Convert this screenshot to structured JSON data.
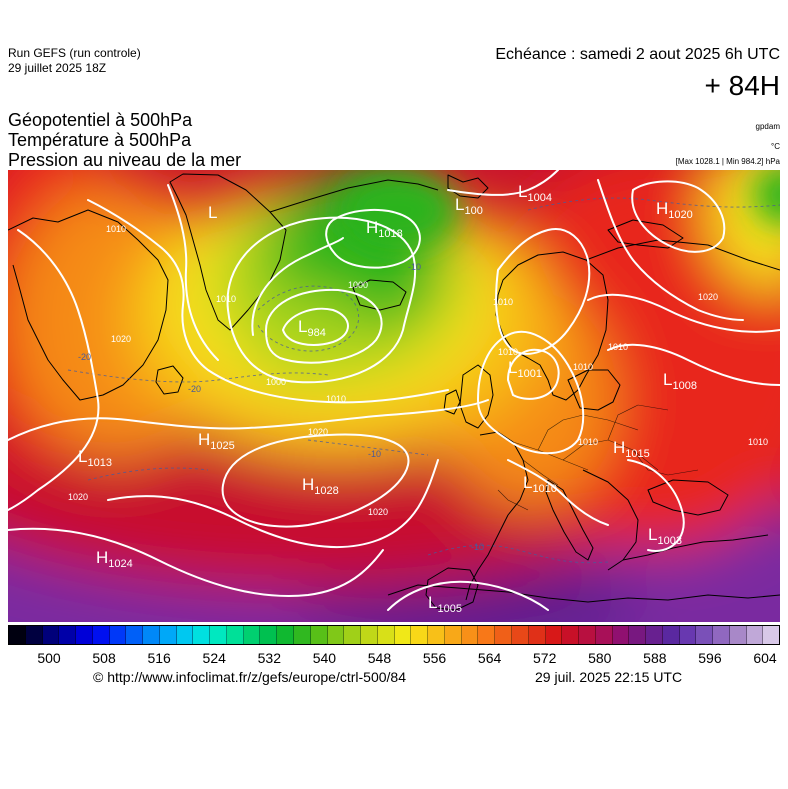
{
  "header": {
    "run_title": "Run GEFS (run controle)",
    "run_date": "29 juillet 2025 18Z",
    "valid_time": "Echéance : samedi 2 aout 2025 6h UTC",
    "lead_time": "+ 84H"
  },
  "layers": [
    "Géopotentiel à 500hPa",
    "Température à 500hPa",
    "Pression au niveau de la mer"
  ],
  "units": {
    "geopotential": "gpdam",
    "temperature": "°C",
    "pressure": "[Max 1028.1 | Min 984.2] hPa"
  },
  "pressure_systems": [
    {
      "type": "L",
      "value": ""
    },
    {
      "type": "H",
      "value": "1018"
    },
    {
      "type": "L",
      "value": "100"
    },
    {
      "type": "L",
      "value": "1004"
    },
    {
      "type": "H",
      "value": "1020"
    },
    {
      "type": "L",
      "value": "984"
    },
    {
      "type": "L",
      "value": "1001"
    },
    {
      "type": "L",
      "value": "1008"
    },
    {
      "type": "H",
      "value": "1025"
    },
    {
      "type": "L",
      "value": "1013"
    },
    {
      "type": "H",
      "value": "1028"
    },
    {
      "type": "H",
      "value": "1015"
    },
    {
      "type": "L",
      "value": "1010"
    },
    {
      "type": "L",
      "value": "1003"
    },
    {
      "type": "H",
      "value": "1024"
    },
    {
      "type": "L",
      "value": "1005"
    }
  ],
  "isobar_labels": [
    "1010",
    "1020",
    "1010",
    "1000",
    "1010",
    "1020",
    "1020",
    "1000",
    "1010",
    "1010",
    "1020",
    "1010",
    "1020",
    "1010",
    "1010",
    "1010"
  ],
  "temperature_labels": [
    "-20",
    "-20",
    "-10",
    "-10",
    "-10"
  ],
  "colors": {
    "purple": "#5a1a8c",
    "violet": "#7a2aa0",
    "magenta": "#a8145a",
    "crimson": "#c8102e",
    "red": "#e8281c",
    "orange_red": "#f0501a",
    "orange": "#f58a16",
    "amber": "#f8b814",
    "yellow": "#f5e01c",
    "yellow_green": "#a8d41a",
    "green": "#2ab41c"
  },
  "colorbar": {
    "ticks": [
      "500",
      "508",
      "516",
      "524",
      "532",
      "540",
      "548",
      "556",
      "564",
      "572",
      "580",
      "588",
      "596",
      "604"
    ],
    "colors": [
      "#000010",
      "#000040",
      "#00007a",
      "#0000a8",
      "#0000d8",
      "#0010f0",
      "#0038f8",
      "#0060f8",
      "#0088f8",
      "#00a8f8",
      "#00c8f0",
      "#00e0e0",
      "#00e8c0",
      "#00e098",
      "#00d070",
      "#00c050",
      "#10b830",
      "#30b820",
      "#58c018",
      "#80c818",
      "#a0d018",
      "#c0d818",
      "#d8e018",
      "#f0e818",
      "#f8d818",
      "#f8c018",
      "#f8a818",
      "#f89018",
      "#f87818",
      "#f06018",
      "#e84818",
      "#e03018",
      "#d81818",
      "#c81028",
      "#b81040",
      "#a81058",
      "#901070",
      "#781880",
      "#682090",
      "#5a28a0",
      "#6838b0",
      "#7a50b8",
      "#9068c0",
      "#a888c8",
      "#c0a8d8",
      "#d8c8e8"
    ]
  },
  "credits": {
    "url": "© http://www.infoclimat.fr/z/gefs/europe/ctrl-500/84",
    "generated": "29 juil. 2025 22:15 UTC"
  }
}
